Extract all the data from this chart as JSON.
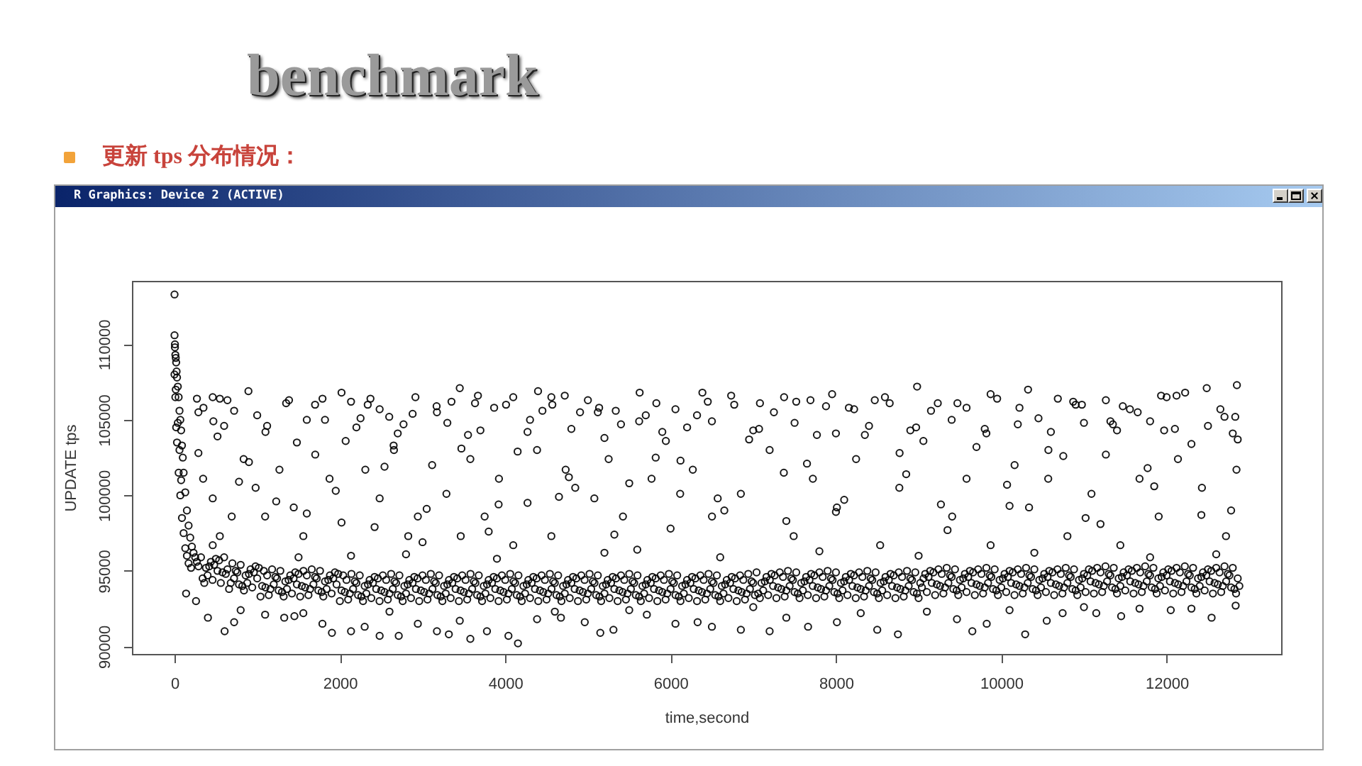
{
  "chart_data": {
    "type": "scatter",
    "title": "benchmark",
    "subtitle": "更新 tps 分布情况：",
    "annotations": [
      "R Graphics: Device 2 (ACTIVE)"
    ],
    "xlabel": "time,second",
    "ylabel": "UPDATE tps",
    "color": "#000000",
    "marker": "circle",
    "xlim": [
      -515,
      13385
    ],
    "ylim": [
      89500,
      114200
    ],
    "xticks": [
      0,
      2000,
      4000,
      6000,
      8000,
      10000,
      12000
    ],
    "yticks": [
      90000,
      95000,
      100000,
      105000,
      110000
    ],
    "x": [
      0,
      0,
      5,
      10,
      15,
      20,
      25,
      30,
      40,
      50,
      60,
      70,
      80,
      90,
      100,
      110,
      130,
      150,
      170,
      190,
      210,
      230,
      250,
      270,
      290,
      0,
      5,
      10,
      15,
      20,
      30,
      40,
      50,
      60,
      70,
      80,
      90,
      110,
      130,
      150,
      170,
      200,
      140,
      260,
      894,
      271,
      462,
      548,
      721,
      289,
      1385,
      1790,
      2020,
      2135,
      2337,
      2481,
      2597,
      2914,
      3174,
      3450,
      3635,
      3866,
      4010,
      4097,
      4397,
      4558,
      4720,
      4905,
      5136,
      5337,
      5626,
      5828,
      6059,
      6385,
      6733,
      7081,
      7373,
      7692,
      7954,
      8157,
      8593,
      8982,
      9232,
      9580,
      9871,
      10324,
      10684,
      10975,
      11265,
      11556,
      11933,
      12224,
      12485,
      12850,
      12830,
      600,
      1100,
      1600,
      2200,
      2700,
      3300,
      3700,
      4300,
      4800,
      5400,
      5900,
      6500,
      7000,
      7500,
      8000,
      8400,
      8900,
      9400,
      9800,
      10200,
      10600,
      11000,
      11400,
      11800,
      12100,
      12500,
      12800,
      289,
      346,
      462,
      548,
      462,
      692,
      836,
      981,
      1096,
      1269,
      1442,
      1558,
      1702,
      1875,
      2020,
      2135,
      2308,
      2481,
      2654,
      2827,
      2943,
      3116,
      3289,
      3462,
      3578,
      3751,
      3924,
      4097,
      4270,
      4385,
      4558,
      4731,
      4847,
      5078,
      5251,
      5424,
      5597,
      5770,
      5943,
      6116,
      6269,
      6501,
      6850,
      7198,
      7489,
      7721,
      8012,
      8244,
      8535,
      8767,
      9058,
      9406,
      9580,
      9871,
      10161,
      10336,
      10568,
      10800,
      11091,
      11265,
      11440,
      11672,
      11904,
      12137,
      12427,
      12718,
      12845,
      404,
      606,
      721,
      1096,
      1327,
      1558,
      1789,
      1904,
      2135,
      2481,
      2712,
      2943,
      3174,
      3318,
      3578,
      3779,
      4039,
      4154,
      4385,
      4674,
      4962,
      5309,
      5713,
      6059,
      6327,
      6850,
      7198,
      7663,
      8012,
      8750,
      9464,
      9824,
      10289,
      10742,
      11149,
      11672,
      12050,
      12544,
      12835,
      1500,
      2800,
      3900,
      5200,
      6600,
      7800,
      9000,
      10400,
      11800,
      12600,
      350,
      520,
      780,
      1000,
      1230,
      1480,
      1700,
      1950,
      2250,
      2420,
      2650,
      2880,
      3050,
      3350,
      3550,
      3800,
      4150,
      4450,
      4650,
      5000,
      5200,
      5500,
      5700,
      6000,
      6200,
      6450,
      6650,
      6950,
      7250,
      7400,
      7650,
      7880,
      8100,
      8350,
      8650,
      8850,
      9150,
      9350,
      9700,
      9950,
      10100,
      10450,
      10750,
      10900,
      11200,
      11350,
      11650,
      11850,
      12000,
      12300,
      12650,
      12780,
      470,
      640,
      900,
      1120,
      1350,
      1600,
      1820,
      2070,
      2370,
      2540,
      2770,
      3000,
      3170,
      3470,
      3670,
      3920,
      4270,
      4570,
      4770,
      5120,
      5320,
      5620,
      5820,
      6120,
      6320,
      6570,
      6770,
      7070,
      7370,
      7520,
      7770,
      8000,
      8220,
      8470,
      8770,
      8970,
      9270,
      9470,
      9820,
      10070,
      10220,
      10570,
      10870,
      11020,
      11320,
      11470,
      11770,
      11970,
      12120,
      12420,
      12700,
      12860,
      800,
      1450,
      2300,
      2600,
      3450,
      4600,
      5150,
      5500,
      6500,
      7000,
      7400,
      8300,
      8500,
      9100,
      9650,
      10100,
      10550,
      11000,
      11450,
      12300,
      320,
      400,
      480,
      560,
      640,
      720,
      800,
      880,
      960,
      1040,
      1120,
      1200,
      1280,
      1360,
      1440,
      1520,
      1600,
      1680,
      1760,
      1840,
      1920,
      2000,
      2080,
      2160,
      2240,
      2320,
      2400,
      2480,
      2560,
      2640,
      2720,
      2800,
      2880,
      2960,
      3040,
      3120,
      3200,
      3280,
      3360,
      3440,
      3520,
      3600,
      3680,
      3760,
      3840,
      3920,
      4000,
      4080,
      4160,
      4240,
      4320,
      4400,
      4480,
      4560,
      4640,
      4720,
      4800,
      4880,
      4960,
      5040,
      5120,
      5200,
      5280,
      5360,
      5440,
      5520,
      5600,
      5680,
      5760,
      5840,
      5920,
      6000,
      6080,
      6160,
      6240,
      6320,
      6400,
      6480,
      6560,
      6640,
      6720,
      6800,
      6880,
      6960,
      7040,
      7120,
      7200,
      7280,
      7360,
      7440,
      7520,
      7600,
      7680,
      7760,
      7840,
      7920,
      8000,
      8080,
      8160,
      8240,
      8320,
      8400,
      8480,
      8560,
      8640,
      8720,
      8800,
      8880,
      8960,
      9040,
      9120,
      9200,
      9280,
      9360,
      9440,
      9520,
      9600,
      9680,
      9760,
      9840,
      9920,
      10000,
      10080,
      10160,
      10240,
      10320,
      10400,
      10480,
      10560,
      10640,
      10720,
      10800,
      10880,
      10960,
      11040,
      11120,
      11200,
      11280,
      11360,
      11440,
      11520,
      11600,
      11680,
      11760,
      11840,
      11920,
      12000,
      12080,
      12160,
      12240,
      12320,
      12400,
      12480,
      12560,
      12640,
      12720,
      12800,
      12880,
      360,
      440,
      520,
      600,
      680,
      760,
      840,
      920,
      1000,
      1080,
      1160,
      1240,
      1320,
      1400,
      1480,
      1560,
      1640,
      1720,
      1800,
      1880,
      1960,
      2040,
      2120,
      2200,
      2280,
      2360,
      2440,
      2520,
      2600,
      2680,
      2760,
      2840,
      2920,
      3000,
      3080,
      3160,
      3240,
      3320,
      3400,
      3480,
      3560,
      3640,
      3720,
      3800,
      3880,
      3960,
      4040,
      4120,
      4200,
      4280,
      4360,
      4440,
      4520,
      4600,
      4680,
      4760,
      4840,
      4920,
      5000,
      5080,
      5160,
      5240,
      5320,
      5400,
      5480,
      5560,
      5640,
      5720,
      5800,
      5880,
      5960,
      6040,
      6120,
      6200,
      6280,
      6360,
      6440,
      6520,
      6600,
      6680,
      6760,
      6840,
      6920,
      7000,
      7080,
      7160,
      7240,
      7320,
      7400,
      7480,
      7560,
      7640,
      7720,
      7800,
      7880,
      7960,
      8040,
      8120,
      8200,
      8280,
      8360,
      8440,
      8520,
      8600,
      8680,
      8760,
      8840,
      8920,
      9000,
      9080,
      9160,
      9240,
      9320,
      9400,
      9480,
      9560,
      9640,
      9720,
      9800,
      9880,
      9960,
      10040,
      10120,
      10200,
      10280,
      10360,
      10440,
      10520,
      10600,
      10680,
      10760,
      10840,
      10920,
      11000,
      11080,
      11160,
      11240,
      11320,
      11400,
      11480,
      11560,
      11640,
      11720,
      11800,
      11880,
      11960,
      12040,
      12120,
      12200,
      12280,
      12360,
      12440,
      12520,
      12600,
      12680,
      12760,
      12840,
      340,
      420,
      500,
      580,
      660,
      740,
      820,
      900,
      980,
      1060,
      1140,
      1220,
      1300,
      1380,
      1460,
      1540,
      1620,
      1700,
      1780,
      1860,
      1940,
      2020,
      2100,
      2180,
      2260,
      2340,
      2420,
      2500,
      2580,
      2660,
      2740,
      2820,
      2900,
      2980,
      3060,
      3140,
      3220,
      3300,
      3380,
      3460,
      3540,
      3620,
      3700,
      3780,
      3860,
      3940,
      4020,
      4100,
      4180,
      4260,
      4340,
      4420,
      4500,
      4580,
      4660,
      4740,
      4820,
      4900,
      4980,
      5060,
      5140,
      5220,
      5300,
      5380,
      5460,
      5540,
      5620,
      5700,
      5780,
      5860,
      5940,
      6020,
      6100,
      6180,
      6260,
      6340,
      6420,
      6500,
      6580,
      6660,
      6740,
      6820,
      6900,
      6980,
      7060,
      7140,
      7220,
      7300,
      7380,
      7460,
      7540,
      7620,
      7700,
      7780,
      7860,
      7940,
      8020,
      8100,
      8180,
      8260,
      8340,
      8420,
      8500,
      8580,
      8660,
      8740,
      8820,
      8900,
      8980,
      9060,
      9140,
      9220,
      9300,
      9380,
      9460,
      9540,
      9620,
      9700,
      9780,
      9860,
      9940,
      10020,
      10100,
      10180,
      10260,
      10340,
      10420,
      10500,
      10580,
      10660,
      10740,
      10820,
      10900,
      10980,
      11060,
      11140,
      11220,
      11300,
      11380,
      11460,
      11540,
      11620,
      11700,
      11780,
      11860,
      11940,
      12020,
      12100,
      12180,
      12260,
      12340,
      12420,
      12500,
      12580,
      12660,
      12740,
      12820,
      380,
      460,
      540,
      620,
      700,
      780,
      860,
      940,
      1020,
      1100,
      1180,
      1260,
      1340,
      1420,
      1500,
      1580,
      1660,
      1740,
      1820,
      1900,
      1980,
      2060,
      2140,
      2220,
      2300,
      2380,
      2460,
      2540,
      2620,
      2700,
      2780,
      2860,
      2940,
      3020,
      3100,
      3180,
      3260,
      3340,
      3420,
      3500,
      3580,
      3660,
      3740,
      3820,
      3900,
      3980,
      4060,
      4140,
      4220,
      4300,
      4380,
      4460,
      4540,
      4620,
      4700,
      4780,
      4860,
      4940,
      5020,
      5100,
      5180,
      5260,
      5340,
      5420,
      5500,
      5580,
      5660,
      5740,
      5820,
      5900,
      5980,
      6060,
      6140,
      6220,
      6300,
      6380,
      6460,
      6540,
      6620,
      6700,
      6780,
      6860,
      6940,
      7020,
      7100,
      7180,
      7260,
      7340,
      7420,
      7500,
      7580,
      7660,
      7740,
      7820,
      7900,
      7980,
      8060,
      8140,
      8220,
      8300,
      8380,
      8460,
      8540,
      8620,
      8700,
      8780,
      8860,
      8940,
      9020,
      9100,
      9180,
      9260,
      9340,
      9420,
      9500,
      9580,
      9660,
      9740,
      9820,
      9900,
      9980,
      10060,
      10140,
      10220,
      10300,
      10380,
      10460,
      10540,
      10620,
      10700,
      10780,
      10860,
      10940,
      11020,
      11100,
      11180,
      11260,
      11340,
      11420,
      11500,
      11580,
      11660,
      11740,
      11820,
      11900,
      11980,
      12060,
      12140,
      12220,
      12300,
      12380,
      12460,
      12540,
      12620,
      12700,
      12780,
      12860
    ],
    "values": [
      113300,
      110600,
      109800,
      109300,
      109100,
      108800,
      108200,
      107800,
      107200,
      106500,
      105600,
      105000,
      104300,
      103300,
      102500,
      101500,
      100200,
      99000,
      98000,
      97200,
      96600,
      96200,
      95900,
      95600,
      95300,
      108000,
      110000,
      106500,
      107000,
      104500,
      103500,
      104800,
      101500,
      103000,
      100000,
      101000,
      98500,
      97500,
      96500,
      96000,
      95500,
      95200,
      93500,
      93000,
      106900,
      106400,
      106500,
      106400,
      105600,
      105500,
      106300,
      106400,
      106800,
      106200,
      106000,
      105700,
      105200,
      106500,
      105500,
      107100,
      106100,
      105800,
      106000,
      106500,
      106900,
      106500,
      106600,
      105500,
      105800,
      105600,
      106800,
      106100,
      105700,
      106800,
      106600,
      106100,
      106500,
      106300,
      106700,
      105800,
      106500,
      107200,
      106100,
      105800,
      106700,
      107000,
      106400,
      106000,
      106300,
      105700,
      106600,
      106800,
      107100,
      107300,
      105200,
      104600,
      104200,
      105000,
      104500,
      104100,
      104800,
      104300,
      105000,
      104400,
      104700,
      104200,
      104900,
      104300,
      104800,
      104100,
      104600,
      104300,
      105000,
      104400,
      104700,
      104200,
      104800,
      104300,
      104900,
      104400,
      104600,
      104100,
      102800,
      101100,
      99800,
      97300,
      96700,
      98600,
      102400,
      100500,
      98600,
      101700,
      99200,
      97300,
      102700,
      101100,
      98200,
      96000,
      101700,
      99800,
      103000,
      97300,
      98600,
      102000,
      100100,
      97300,
      102400,
      98600,
      101100,
      96700,
      99500,
      103000,
      97300,
      101700,
      100500,
      99800,
      102400,
      98600,
      96400,
      101100,
      103600,
      100100,
      101700,
      98600,
      100100,
      103000,
      97300,
      101100,
      99200,
      102400,
      96700,
      100500,
      103600,
      98600,
      101100,
      96700,
      102000,
      99200,
      101100,
      97300,
      100100,
      102700,
      96700,
      101100,
      98600,
      102400,
      100500,
      97300,
      101700,
      91900,
      91000,
      91600,
      92100,
      91900,
      92200,
      91500,
      90900,
      91000,
      90700,
      90700,
      91500,
      91000,
      90800,
      90500,
      91000,
      90700,
      90200,
      91800,
      91900,
      91600,
      91100,
      92100,
      91500,
      91600,
      91100,
      91000,
      91300,
      91600,
      90800,
      91800,
      91500,
      90800,
      92200,
      92200,
      92500,
      92400,
      91900,
      92700,
      95900,
      96100,
      95800,
      96200,
      95900,
      96300,
      96000,
      96200,
      95900,
      96100,
      105800,
      103900,
      100900,
      105300,
      99600,
      103500,
      106000,
      100300,
      105100,
      97900,
      103300,
      105400,
      99100,
      106200,
      104000,
      97600,
      102900,
      105600,
      99900,
      106300,
      103800,
      100800,
      105300,
      97800,
      104500,
      106200,
      99000,
      103700,
      105500,
      98300,
      102100,
      105900,
      99700,
      104000,
      106100,
      101400,
      105600,
      97700,
      103200,
      106400,
      99300,
      105100,
      102600,
      106000,
      98100,
      104700,
      105500,
      100600,
      106500,
      103400,
      105700,
      99000,
      104900,
      106300,
      102200,
      104600,
      106100,
      98800,
      105000,
      103600,
      106400,
      101900,
      104700,
      96900,
      105900,
      103100,
      106600,
      99400,
      104200,
      106000,
      101200,
      105500,
      97400,
      104900,
      102500,
      102300,
      105300,
      99800,
      106000,
      104400,
      101500,
      106200,
      104000,
      98900,
      105700,
      106300,
      102800,
      104500,
      99400,
      106100,
      104100,
      100700,
      105800,
      103000,
      106200,
      98500,
      104900,
      105900,
      101800,
      104300,
      106600,
      98700,
      105200,
      103700,
      92400,
      92000,
      91300,
      92300,
      91700,
      92300,
      90900,
      92400,
      91300,
      92600,
      91900,
      92200,
      91100,
      92300,
      91000,
      92400,
      91700,
      92600,
      92000,
      92500,
      95900,
      94700,
      95400,
      94200,
      95100,
      94500,
      95400,
      94200,
      94900,
      93300,
      94700,
      94100,
      95000,
      93800,
      94500,
      93300,
      94700,
      94100,
      95000,
      93800,
      94500,
      93000,
      94400,
      93800,
      94700,
      93500,
      94200,
      93000,
      94400,
      93800,
      94700,
      93500,
      94200,
      93000,
      94400,
      93800,
      94700,
      93500,
      94200,
      93000,
      94400,
      93800,
      94700,
      93500,
      94200,
      93000,
      94400,
      93800,
      94700,
      93500,
      94200,
      93000,
      94400,
      93800,
      94700,
      93500,
      94200,
      93000,
      94400,
      93800,
      94700,
      93500,
      94200,
      93000,
      94400,
      93800,
      94700,
      93500,
      94200,
      93000,
      94400,
      93800,
      94700,
      93500,
      94200,
      93000,
      94400,
      93800,
      94700,
      93500,
      94200,
      93000,
      94400,
      93800,
      94900,
      93700,
      94400,
      93200,
      94600,
      94000,
      94900,
      93700,
      94400,
      93200,
      94600,
      94000,
      94900,
      93700,
      94400,
      93200,
      94600,
      94000,
      94900,
      93700,
      94400,
      93200,
      94600,
      94000,
      94900,
      93900,
      94600,
      93400,
      94800,
      94200,
      95100,
      93900,
      94600,
      93400,
      94800,
      94200,
      95100,
      93900,
      94600,
      93400,
      94800,
      94200,
      95100,
      93900,
      94600,
      93400,
      94800,
      94200,
      95100,
      93900,
      94700,
      93500,
      94900,
      94300,
      95200,
      94000,
      94700,
      93500,
      94900,
      94300,
      95200,
      94000,
      94700,
      93500,
      94900,
      94300,
      95200,
      94000,
      94700,
      93500,
      94900,
      94300,
      95200,
      94000,
      94200,
      95600,
      95000,
      95900,
      94200,
      94900,
      93700,
      95100,
      94500,
      95000,
      93800,
      94500,
      93300,
      94700,
      94100,
      95000,
      93800,
      94500,
      93300,
      94700,
      94100,
      94700,
      93500,
      94200,
      93000,
      94400,
      93800,
      94700,
      93500,
      94200,
      93000,
      94400,
      93800,
      94700,
      93500,
      94200,
      93000,
      94400,
      93800,
      94700,
      93500,
      94200,
      93000,
      94400,
      93800,
      94700,
      93500,
      94200,
      93000,
      94400,
      93800,
      94700,
      93500,
      94200,
      93000,
      94400,
      93800,
      94700,
      93500,
      94200,
      93000,
      94400,
      93800,
      94700,
      93500,
      94200,
      93000,
      94400,
      93800,
      94700,
      93500,
      94200,
      93000,
      94400,
      93800,
      94700,
      93500,
      94200,
      93000,
      94400,
      93800,
      94700,
      93500,
      94200,
      93200,
      94600,
      94000,
      94900,
      93700,
      94400,
      93200,
      94600,
      94000,
      94900,
      93700,
      94400,
      93200,
      94600,
      94000,
      94900,
      93700,
      94400,
      93200,
      94600,
      94000,
      94900,
      93700,
      94400,
      93200,
      94800,
      94200,
      95100,
      93900,
      94600,
      93400,
      94800,
      94200,
      95100,
      93900,
      94600,
      93400,
      94800,
      94200,
      95100,
      93900,
      94600,
      93400,
      94800,
      94200,
      95100,
      93900,
      94600,
      93400,
      94800,
      94300,
      95200,
      94000,
      94700,
      93500,
      94900,
      94300,
      95200,
      94000,
      94700,
      93500,
      94900,
      94300,
      95200,
      94000,
      94700,
      93500,
      94900,
      94300,
      95200,
      94000,
      94700,
      93500,
      94500,
      95300,
      95800,
      94900,
      93800,
      95000,
      94000,
      94800,
      95300,
      94000,
      93400,
      94600,
      93600,
      94400,
      94900,
      94000,
      93400,
      94600,
      93600,
      94400,
      94900,
      93700,
      93100,
      94300,
      93300,
      94100,
      94600,
      93700,
      93100,
      94300,
      93300,
      94100,
      94600,
      93700,
      93100,
      94300,
      93300,
      94100,
      94600,
      93700,
      93100,
      94300,
      93300,
      94100,
      94600,
      93700,
      93100,
      94300,
      93300,
      94100,
      94600,
      93700,
      93100,
      94300,
      93300,
      94100,
      94600,
      93700,
      93100,
      94300,
      93300,
      94100,
      94600,
      93700,
      93100,
      94300,
      93300,
      94100,
      94600,
      93700,
      93100,
      94300,
      93300,
      94100,
      94600,
      93700,
      93100,
      94300,
      93300,
      94100,
      94600,
      93700,
      93100,
      94300,
      93500,
      94300,
      94800,
      93900,
      93300,
      94500,
      93500,
      94300,
      94800,
      93900,
      93300,
      94500,
      93500,
      94300,
      94800,
      93900,
      93300,
      94500,
      93500,
      94300,
      94800,
      93900,
      93300,
      94500,
      93500,
      94500,
      95000,
      94100,
      93500,
      94700,
      93700,
      94500,
      95000,
      94100,
      93500,
      94700,
      93700,
      94500,
      95000,
      94100,
      93500,
      94700,
      93700,
      94500,
      95000,
      94100,
      93500,
      94700,
      93700,
      94500,
      95100,
      94200,
      93600,
      94800,
      93800,
      94600,
      95100,
      94200,
      93600,
      94800,
      93800,
      94600,
      95100,
      94200,
      93600,
      94800,
      93800,
      94600,
      95100,
      94200,
      93600,
      94800,
      93800,
      95200,
      94400,
      95700,
      94800,
      95500,
      94100,
      94700,
      93900,
      95200,
      93900,
      95100,
      93700,
      94300,
      93500,
      94800,
      93900,
      95100,
      93700,
      94300,
      93500,
      94800,
      93600,
      94800,
      93400,
      94000,
      93200,
      94500,
      93600,
      94800,
      93400,
      94000,
      93200,
      94500,
      93600,
      94800,
      93400,
      94000,
      93200,
      94500,
      93600,
      94800,
      93400,
      94000,
      93200,
      94500,
      93600,
      94800,
      93400,
      94000,
      93200,
      94500,
      93600,
      94800,
      93400,
      94000,
      93200,
      94500,
      93600,
      94800,
      93400,
      94000,
      93200,
      94500,
      93600,
      94800,
      93400,
      94000,
      93200,
      94500,
      93600,
      94800,
      93400,
      94000,
      93200,
      94500,
      93600,
      94800,
      93400,
      94000,
      93200,
      94500,
      93600,
      94800,
      93400,
      94200,
      93400,
      94700,
      93800,
      95000,
      93600,
      94200,
      93400,
      94700,
      93800,
      95000,
      93600,
      94200,
      93400,
      94700,
      93800,
      95000,
      93600,
      94200,
      93400,
      94700,
      93800,
      95000,
      93600,
      94200,
      93600,
      94900,
      94000,
      95200,
      93800,
      94400,
      93600,
      94900,
      94000,
      95200,
      93800,
      94400,
      93600,
      94900,
      94000,
      95200,
      93800,
      94400,
      93600,
      94900,
      94000,
      95200,
      93800,
      94400,
      93600,
      95000,
      94100,
      95300,
      93900,
      94500,
      93700,
      95000,
      94100,
      95300,
      93900,
      94500,
      93700,
      95000,
      94100,
      95300,
      93900,
      94500,
      93700,
      95000,
      94100,
      95300,
      93900,
      94500
    ]
  }
}
